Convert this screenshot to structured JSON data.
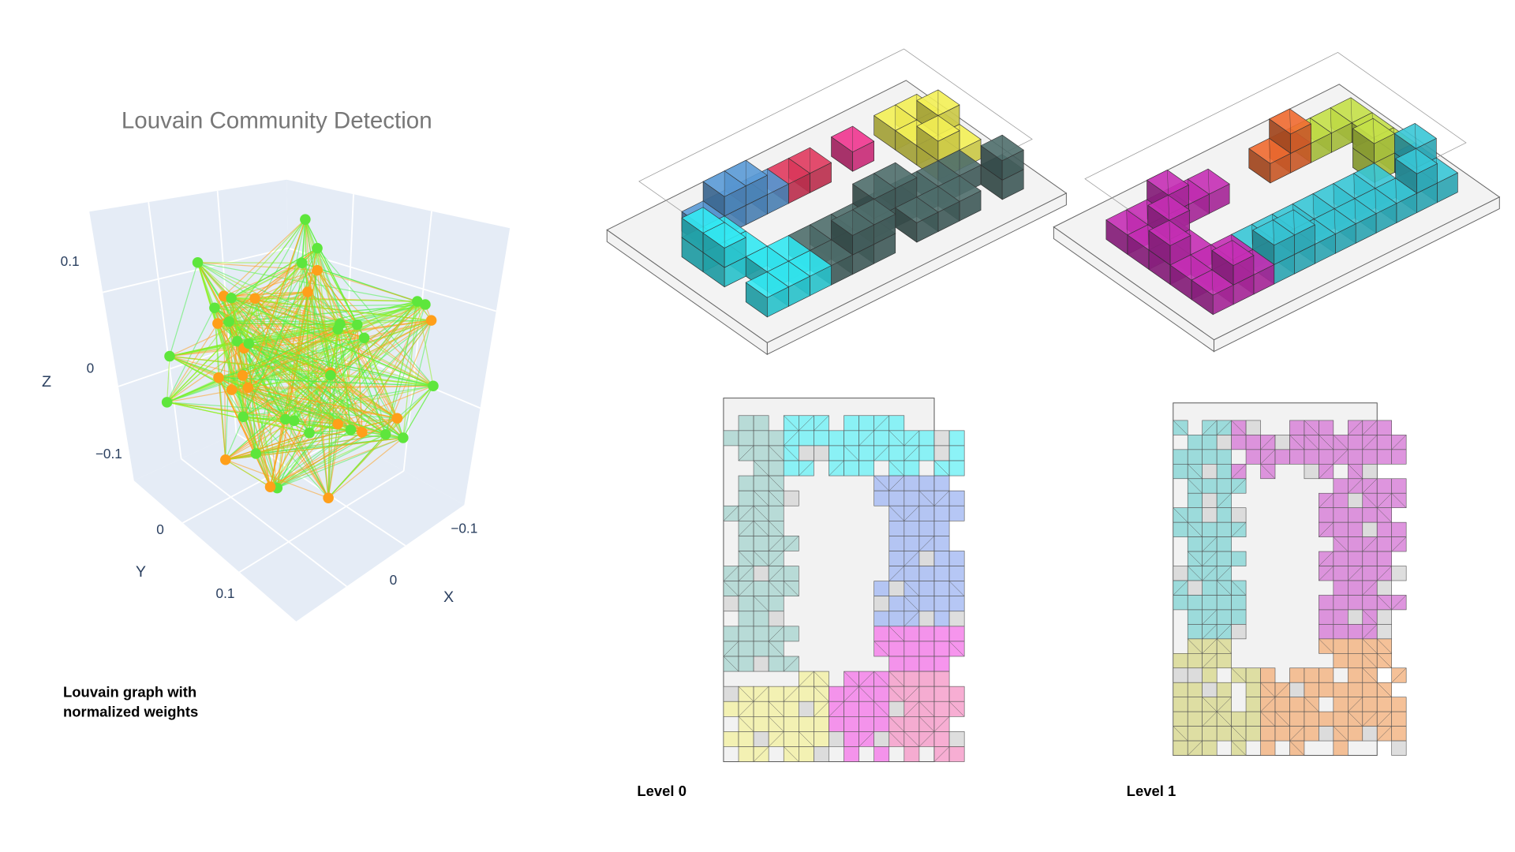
{
  "plot": {
    "title": "Louvain Community Detection",
    "axes": [
      {
        "label": "Z",
        "ticks": [
          "0.1",
          "0",
          "−0.1"
        ]
      },
      {
        "label": "Y",
        "ticks": [
          "0",
          "0.1"
        ]
      },
      {
        "label": "X",
        "ticks": [
          "−0.1",
          "0"
        ]
      }
    ],
    "caption": [
      "Louvain graph with",
      "normalized weights"
    ]
  },
  "levels": [
    {
      "label": "Level 0"
    },
    {
      "label": "Level 1"
    }
  ]
}
